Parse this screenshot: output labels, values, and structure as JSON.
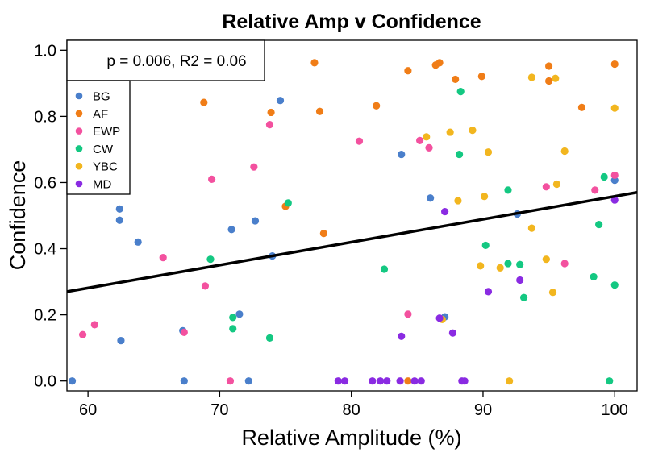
{
  "chart_data": {
    "type": "scatter",
    "title": "Relative Amp v Confidence",
    "xlabel": "Relative Amplitude (%)",
    "ylabel": "Confidence",
    "xlim": [
      58.4,
      101.7
    ],
    "ylim": [
      -0.03,
      1.03
    ],
    "xticks": [
      "60",
      "70",
      "80",
      "90",
      "100"
    ],
    "yticks": [
      "0.0",
      "0.2",
      "0.4",
      "0.6",
      "0.8",
      "1.0"
    ],
    "xtick_values": [
      60,
      70,
      80,
      90,
      100
    ],
    "ytick_values": [
      0.0,
      0.2,
      0.4,
      0.6,
      0.8,
      1.0
    ],
    "grid": false,
    "legend_position": "top-left",
    "annotation": "p = 0.006, R2 = 0.06",
    "fit_line": {
      "x": [
        58.4,
        101.7
      ],
      "y": [
        0.27,
        0.57
      ],
      "color": "#000000"
    },
    "series": [
      {
        "name": "BG",
        "color": "#4a7fcb",
        "points": [
          [
            58.8,
            0.0
          ],
          [
            62.4,
            0.52
          ],
          [
            62.4,
            0.486
          ],
          [
            62.5,
            0.122
          ],
          [
            63.8,
            0.42
          ],
          [
            67.2,
            0.152
          ],
          [
            67.3,
            0.0
          ],
          [
            70.9,
            0.458
          ],
          [
            71.5,
            0.202
          ],
          [
            72.2,
            0.0
          ],
          [
            72.7,
            0.484
          ],
          [
            74.0,
            0.378
          ],
          [
            74.6,
            0.848
          ],
          [
            83.8,
            0.685
          ],
          [
            86.0,
            0.553
          ],
          [
            87.1,
            0.194
          ],
          [
            92.6,
            0.505
          ],
          [
            100.0,
            0.607
          ]
        ]
      },
      {
        "name": "AF",
        "color": "#f07d17",
        "points": [
          [
            68.8,
            0.842
          ],
          [
            73.9,
            0.812
          ],
          [
            75.0,
            0.528
          ],
          [
            77.2,
            0.962
          ],
          [
            77.6,
            0.815
          ],
          [
            77.9,
            0.446
          ],
          [
            81.9,
            0.832
          ],
          [
            84.3,
            0.938
          ],
          [
            86.4,
            0.955
          ],
          [
            86.7,
            0.962
          ],
          [
            87.9,
            0.912
          ],
          [
            89.9,
            0.921
          ],
          [
            95.0,
            0.952
          ],
          [
            95.0,
            0.907
          ],
          [
            97.5,
            0.827
          ],
          [
            100.0,
            0.958
          ],
          [
            84.3,
            0.0
          ]
        ]
      },
      {
        "name": "EWP",
        "color": "#f3519f",
        "points": [
          [
            59.6,
            0.14
          ],
          [
            60.5,
            0.17
          ],
          [
            65.7,
            0.373
          ],
          [
            67.3,
            0.147
          ],
          [
            68.9,
            0.287
          ],
          [
            69.4,
            0.61
          ],
          [
            70.8,
            0.0
          ],
          [
            72.6,
            0.647
          ],
          [
            73.8,
            0.775
          ],
          [
            80.6,
            0.725
          ],
          [
            84.3,
            0.202
          ],
          [
            85.2,
            0.727
          ],
          [
            85.9,
            0.705
          ],
          [
            94.8,
            0.587
          ],
          [
            96.2,
            0.355
          ],
          [
            98.5,
            0.577
          ],
          [
            100.0,
            0.622
          ]
        ]
      },
      {
        "name": "CW",
        "color": "#14c882",
        "points": [
          [
            69.3,
            0.368
          ],
          [
            71.0,
            0.192
          ],
          [
            71.0,
            0.158
          ],
          [
            73.8,
            0.13
          ],
          [
            75.2,
            0.538
          ],
          [
            82.5,
            0.338
          ],
          [
            88.2,
            0.685
          ],
          [
            88.3,
            0.875
          ],
          [
            90.2,
            0.41
          ],
          [
            91.9,
            0.577
          ],
          [
            91.9,
            0.355
          ],
          [
            92.8,
            0.352
          ],
          [
            93.1,
            0.252
          ],
          [
            98.4,
            0.315
          ],
          [
            98.8,
            0.473
          ],
          [
            99.2,
            0.617
          ],
          [
            99.6,
            0.0
          ],
          [
            100.0,
            0.29
          ]
        ]
      },
      {
        "name": "YBC",
        "color": "#f2b61f",
        "points": [
          [
            85.7,
            0.738
          ],
          [
            86.9,
            0.186
          ],
          [
            88.1,
            0.545
          ],
          [
            87.5,
            0.752
          ],
          [
            89.2,
            0.758
          ],
          [
            89.8,
            0.348
          ],
          [
            90.1,
            0.558
          ],
          [
            90.4,
            0.692
          ],
          [
            91.3,
            0.342
          ],
          [
            92.0,
            0.0
          ],
          [
            93.7,
            0.918
          ],
          [
            93.7,
            0.462
          ],
          [
            94.8,
            0.368
          ],
          [
            95.3,
            0.268
          ],
          [
            95.5,
            0.915
          ],
          [
            95.6,
            0.595
          ],
          [
            96.2,
            0.695
          ],
          [
            100.0,
            0.825
          ]
        ]
      },
      {
        "name": "MD",
        "color": "#8a2be2",
        "points": [
          [
            79.0,
            0.0
          ],
          [
            79.5,
            0.0
          ],
          [
            81.6,
            0.0
          ],
          [
            82.2,
            0.0
          ],
          [
            82.7,
            0.0
          ],
          [
            83.7,
            0.0
          ],
          [
            83.8,
            0.135
          ],
          [
            84.8,
            0.0
          ],
          [
            85.3,
            0.0
          ],
          [
            86.7,
            0.19
          ],
          [
            87.1,
            0.512
          ],
          [
            87.7,
            0.145
          ],
          [
            88.4,
            0.0
          ],
          [
            88.6,
            0.0
          ],
          [
            90.4,
            0.27
          ],
          [
            92.8,
            0.305
          ],
          [
            100.0,
            0.547
          ]
        ]
      }
    ]
  }
}
